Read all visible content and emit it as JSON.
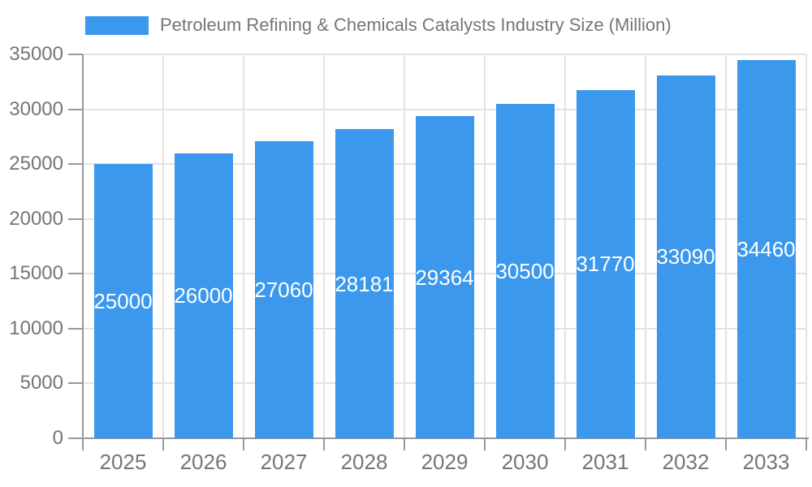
{
  "chart_data": {
    "type": "bar",
    "title": "",
    "series_name": "Petroleum Refining & Chemicals Catalysts Industry Size (Million)",
    "categories": [
      "2025",
      "2026",
      "2027",
      "2028",
      "2029",
      "2030",
      "2031",
      "2032",
      "2033"
    ],
    "values": [
      25000,
      26000,
      27060,
      28181,
      29364,
      30500,
      31770,
      33090,
      34460
    ],
    "xlabel": "",
    "ylabel": "",
    "ylim": [
      0,
      35000
    ],
    "yticks": [
      0,
      5000,
      10000,
      15000,
      20000,
      25000,
      30000,
      35000
    ],
    "grid": true,
    "legend_position": "top",
    "bar_color": "#3B98EC",
    "bar_label_color": "#FFFFFF",
    "grid_color": "#E2E2E2",
    "axis_color": "#999999",
    "text_color": "#757575"
  }
}
